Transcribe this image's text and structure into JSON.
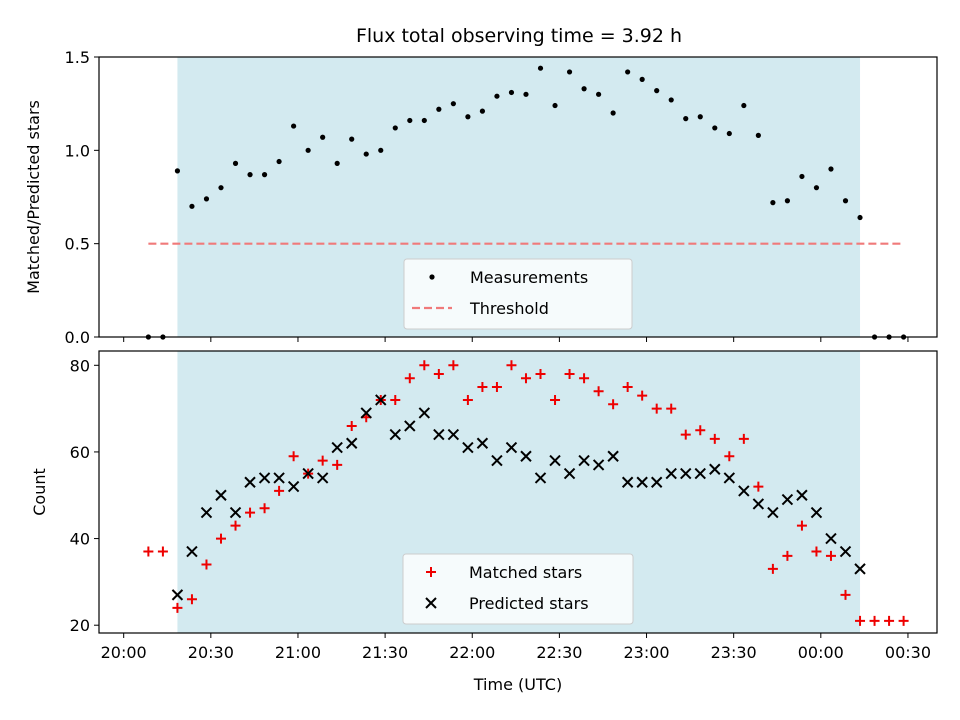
{
  "figure": {
    "title": "Flux total observing time = 3.92 h",
    "xlabel": "Time (UTC)",
    "colors": {
      "observing_window": "#d3eaf0",
      "measurement": "#000000",
      "threshold": "#f07a7a",
      "matched": "#ee0000",
      "predicted": "#000000"
    }
  },
  "chart_data": [
    {
      "type": "scatter",
      "name": "ratio-panel",
      "title": "Flux total observing time = 3.92 h",
      "xlabel": "",
      "ylabel": "Matched/Predicted stars",
      "x_unit": "minutes after 20:00 UTC",
      "xlim": [
        -8.5,
        280
      ],
      "ylim": [
        0,
        1.5
      ],
      "yticks": [
        0.0,
        0.5,
        1.0,
        1.5
      ],
      "ytick_labels": [
        "0.0",
        "0.5",
        "1.0",
        "1.5"
      ],
      "grid": false,
      "legend_position": "lower-center",
      "observing_window": [
        18.5,
        253.5
      ],
      "series": [
        {
          "name": "Measurements",
          "marker": "dot",
          "x": [
            8.5,
            13.5,
            18.5,
            23.5,
            28.5,
            33.5,
            38.5,
            43.5,
            48.5,
            53.5,
            58.5,
            63.5,
            68.5,
            73.5,
            78.5,
            83.5,
            88.5,
            93.5,
            98.5,
            103.5,
            108.5,
            113.5,
            118.5,
            123.5,
            128.5,
            133.5,
            138.5,
            143.5,
            148.5,
            153.5,
            158.5,
            163.5,
            168.5,
            173.5,
            178.5,
            183.5,
            188.5,
            193.5,
            198.5,
            203.5,
            208.5,
            213.5,
            218.5,
            223.5,
            228.5,
            233.5,
            238.5,
            243.5,
            248.5,
            253.5,
            258.5,
            263.5,
            268.5
          ],
          "y": [
            0.0,
            0.0,
            0.89,
            0.7,
            0.74,
            0.8,
            0.93,
            0.87,
            0.87,
            0.94,
            1.13,
            1.0,
            1.07,
            0.93,
            1.06,
            0.98,
            1.0,
            1.12,
            1.16,
            1.16,
            1.22,
            1.25,
            1.18,
            1.21,
            1.29,
            1.31,
            1.3,
            1.44,
            1.24,
            1.42,
            1.33,
            1.3,
            1.2,
            1.42,
            1.38,
            1.32,
            1.27,
            1.17,
            1.18,
            1.12,
            1.09,
            1.24,
            1.08,
            0.72,
            0.73,
            0.86,
            0.8,
            0.9,
            0.73,
            0.64,
            0.0,
            0.0,
            0.0
          ]
        },
        {
          "name": "Threshold",
          "style": "dashed",
          "x": [
            8.5,
            268.5
          ],
          "y": [
            0.5,
            0.5
          ]
        }
      ]
    },
    {
      "type": "scatter",
      "name": "count-panel",
      "title": "",
      "xlabel": "Time (UTC)",
      "ylabel": "Count",
      "x_unit": "minutes after 20:00 UTC",
      "xlim": [
        -8.5,
        280
      ],
      "ylim": [
        18.2,
        83.3
      ],
      "yticks": [
        20,
        40,
        60,
        80
      ],
      "ytick_labels": [
        "20",
        "40",
        "60",
        "80"
      ],
      "xticks": [
        0,
        30,
        60,
        90,
        120,
        150,
        180,
        210,
        240,
        270
      ],
      "xtick_labels": [
        "20:00",
        "20:30",
        "21:00",
        "21:30",
        "22:00",
        "22:30",
        "23:00",
        "23:30",
        "00:00",
        "00:30"
      ],
      "grid": false,
      "legend_position": "lower-center",
      "observing_window": [
        18.5,
        253.5
      ],
      "series": [
        {
          "name": "Matched stars",
          "marker": "plus",
          "x": [
            8.5,
            13.5,
            18.5,
            23.5,
            28.5,
            33.5,
            38.5,
            43.5,
            48.5,
            53.5,
            58.5,
            63.5,
            68.5,
            73.5,
            78.5,
            83.5,
            88.5,
            93.5,
            98.5,
            103.5,
            108.5,
            113.5,
            118.5,
            123.5,
            128.5,
            133.5,
            138.5,
            143.5,
            148.5,
            153.5,
            158.5,
            163.5,
            168.5,
            173.5,
            178.5,
            183.5,
            188.5,
            193.5,
            198.5,
            203.5,
            208.5,
            213.5,
            218.5,
            223.5,
            228.5,
            233.5,
            238.5,
            243.5,
            248.5,
            253.5,
            258.5,
            263.5,
            268.5
          ],
          "y": [
            37,
            37,
            24,
            26,
            34,
            40,
            43,
            46,
            47,
            51,
            59,
            55,
            58,
            57,
            66,
            68,
            72,
            72,
            77,
            80,
            78,
            80,
            72,
            75,
            75,
            80,
            77,
            78,
            72,
            78,
            77,
            74,
            71,
            75,
            73,
            70,
            70,
            64,
            65,
            63,
            59,
            63,
            52,
            33,
            36,
            43,
            37,
            36,
            27,
            21,
            21,
            21,
            21
          ]
        },
        {
          "name": "Predicted stars",
          "marker": "x",
          "x": [
            18.5,
            23.5,
            28.5,
            33.5,
            38.5,
            43.5,
            48.5,
            53.5,
            58.5,
            63.5,
            68.5,
            73.5,
            78.5,
            83.5,
            88.5,
            93.5,
            98.5,
            103.5,
            108.5,
            113.5,
            118.5,
            123.5,
            128.5,
            133.5,
            138.5,
            143.5,
            148.5,
            153.5,
            158.5,
            163.5,
            168.5,
            173.5,
            178.5,
            183.5,
            188.5,
            193.5,
            198.5,
            203.5,
            208.5,
            213.5,
            218.5,
            223.5,
            228.5,
            233.5,
            238.5,
            243.5,
            248.5,
            253.5
          ],
          "y": [
            27,
            37,
            46,
            50,
            46,
            53,
            54,
            54,
            52,
            55,
            54,
            61,
            62,
            69,
            72,
            64,
            66,
            69,
            64,
            64,
            61,
            62,
            58,
            61,
            59,
            54,
            58,
            55,
            58,
            57,
            59,
            53,
            53,
            53,
            55,
            55,
            55,
            56,
            54,
            51,
            48,
            46,
            49,
            50,
            46,
            40,
            37,
            33
          ]
        }
      ]
    }
  ]
}
